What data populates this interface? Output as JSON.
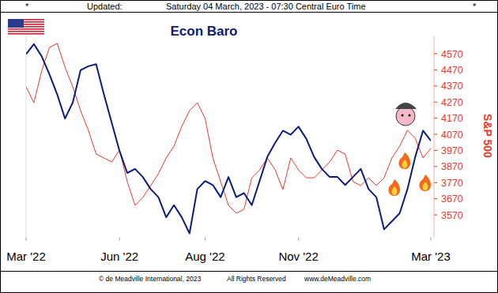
{
  "chart_data": {
    "type": "line",
    "header": [
      "*",
      "Updated:",
      "Saturday 04 March, 2023 - 07:30 Central Euro Time",
      "*"
    ],
    "footer": [
      "© de Meadville International, 2023",
      "All Rights Reserved",
      "www.deMeadville.com"
    ],
    "categories": [
      "Mar '22",
      null,
      null,
      null,
      null,
      null,
      null,
      null,
      null,
      null,
      null,
      null,
      "Jun '22",
      null,
      null,
      null,
      null,
      null,
      null,
      null,
      null,
      null,
      null,
      "Aug '22",
      null,
      null,
      null,
      null,
      null,
      null,
      null,
      null,
      null,
      null,
      null,
      "Nov '22",
      null,
      null,
      null,
      null,
      null,
      null,
      null,
      null,
      null,
      null,
      null,
      null,
      null,
      null,
      null,
      null,
      "Mar '23"
    ],
    "ylim": [
      0,
      100
    ],
    "y2lim": [
      3430,
      4680
    ],
    "y2ticks": [
      3570,
      3670,
      3770,
      3870,
      3970,
      4070,
      4170,
      4270,
      4370,
      4470,
      4570
    ],
    "grid": false,
    "series": [
      {
        "name": "Econ Baro",
        "color": "#0c1c7e",
        "axis": "y",
        "values": [
          91,
          96,
          90,
          81,
          71,
          59,
          67,
          83,
          85,
          86,
          71,
          57,
          43,
          32,
          34,
          30,
          24,
          20,
          10,
          16,
          10,
          2,
          24,
          28,
          26,
          20,
          30,
          20,
          22,
          16,
          28,
          40,
          47,
          53,
          51,
          55,
          49,
          40,
          34,
          30,
          30,
          26,
          30,
          34,
          24,
          20,
          4,
          8,
          12,
          24,
          40,
          53,
          48
        ]
      },
      {
        "name": "S&P 500",
        "color": "#e8392f",
        "axis": "y2",
        "values": [
          4364,
          4266,
          4462,
          4609,
          4634,
          4487,
          4364,
          4217,
          4095,
          3947,
          3923,
          3898,
          3972,
          3776,
          3629,
          3678,
          3751,
          3825,
          3923,
          3996,
          4119,
          4217,
          4266,
          4168,
          3923,
          3776,
          3629,
          3580,
          3604,
          3800,
          3849,
          3923,
          3849,
          3727,
          3923,
          3849,
          3800,
          3800,
          3849,
          3898,
          3972,
          3947,
          3776,
          3751,
          3800,
          3751,
          3800,
          3923,
          3996,
          4095,
          4045,
          3923,
          3982
        ]
      }
    ]
  }
}
